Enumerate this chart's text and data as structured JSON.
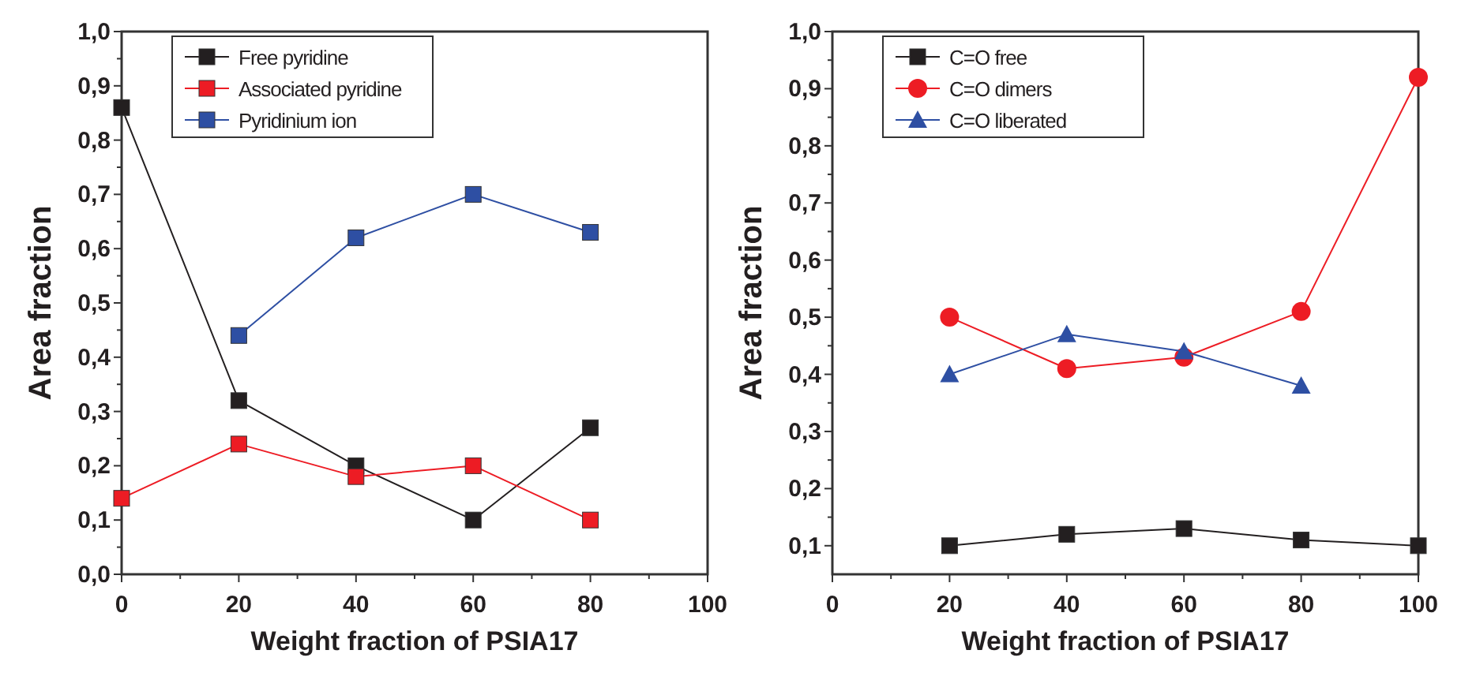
{
  "chart_data": [
    {
      "type": "line",
      "xlabel": "Weight fraction of  PSIA17",
      "ylabel": "Area fraction",
      "xlim": [
        0,
        100
      ],
      "ylim": [
        0,
        1
      ],
      "xticks": [
        0,
        {
          "value": 10,
          "label": null
        },
        20,
        {
          "value": 30,
          "label": null
        },
        40,
        {
          "value": 50,
          "label": null
        },
        60,
        {
          "value": 70,
          "label": null
        },
        80,
        {
          "value": 90,
          "label": null
        },
        100
      ],
      "yticks": [
        {
          "value": 0,
          "label": "0,0"
        },
        {
          "value": 0.05,
          "label": null
        },
        {
          "value": 0.1,
          "label": "0,1"
        },
        {
          "value": 0.15,
          "label": null
        },
        {
          "value": 0.2,
          "label": "0,2"
        },
        {
          "value": 0.25,
          "label": null
        },
        {
          "value": 0.3,
          "label": "0,3"
        },
        {
          "value": 0.35,
          "label": null
        },
        {
          "value": 0.4,
          "label": "0,4"
        },
        {
          "value": 0.45,
          "label": null
        },
        {
          "value": 0.5,
          "label": "0,5"
        },
        {
          "value": 0.55,
          "label": null
        },
        {
          "value": 0.6,
          "label": "0,6"
        },
        {
          "value": 0.65,
          "label": null
        },
        {
          "value": 0.7,
          "label": "0,7"
        },
        {
          "value": 0.75,
          "label": null
        },
        {
          "value": 0.8,
          "label": "0,8"
        },
        {
          "value": 0.85,
          "label": null
        },
        {
          "value": 0.9,
          "label": "0,9"
        },
        {
          "value": 0.95,
          "label": null
        },
        {
          "value": 1,
          "label": "1,0"
        }
      ],
      "legend": "top left",
      "grid": false,
      "marker": "square",
      "line_style": "solid",
      "series": [
        {
          "name": "Free pyridine",
          "color": "#231f20",
          "x": [
            0,
            20,
            40,
            60,
            80
          ],
          "values": [
            0.86,
            0.32,
            0.2,
            0.1,
            0.27
          ]
        },
        {
          "name": "Associated pyridine",
          "color": "#ed1c24",
          "x": [
            0,
            20,
            40,
            60,
            80
          ],
          "values": [
            0.14,
            0.24,
            0.18,
            0.2,
            0.1
          ]
        },
        {
          "name": "Pyridinium ion",
          "color": "#2e4fa3",
          "x": [
            20,
            40,
            60,
            80
          ],
          "values": [
            0.44,
            0.62,
            0.7,
            0.63
          ]
        }
      ]
    },
    {
      "type": "line",
      "xlabel": "Weight fraction of PSIA17",
      "ylabel": "Area fraction",
      "xlim": [
        0,
        100
      ],
      "ylim": [
        0.05,
        1
      ],
      "xticks": [
        0,
        {
          "value": 10,
          "label": null
        },
        20,
        {
          "value": 30,
          "label": null
        },
        40,
        {
          "value": 50,
          "label": null
        },
        60,
        {
          "value": 70,
          "label": null
        },
        80,
        {
          "value": 90,
          "label": null
        },
        100
      ],
      "yticks": [
        {
          "value": 0.1,
          "label": "0,1"
        },
        {
          "value": 0.15,
          "label": null
        },
        {
          "value": 0.2,
          "label": "0,2"
        },
        {
          "value": 0.25,
          "label": null
        },
        {
          "value": 0.3,
          "label": "0,3"
        },
        {
          "value": 0.35,
          "label": null
        },
        {
          "value": 0.4,
          "label": "0,4"
        },
        {
          "value": 0.45,
          "label": null
        },
        {
          "value": 0.5,
          "label": "0,5"
        },
        {
          "value": 0.55,
          "label": null
        },
        {
          "value": 0.6,
          "label": "0,6"
        },
        {
          "value": 0.65,
          "label": null
        },
        {
          "value": 0.7,
          "label": "0,7"
        },
        {
          "value": 0.75,
          "label": null
        },
        {
          "value": 0.8,
          "label": "0,8"
        },
        {
          "value": 0.85,
          "label": null
        },
        {
          "value": 0.9,
          "label": "0,9"
        },
        {
          "value": 0.95,
          "label": null
        },
        {
          "value": 1,
          "label": "1,0"
        }
      ],
      "legend": "top left",
      "grid": false,
      "line_style": "solid",
      "series": [
        {
          "name": "C=O free",
          "color": "#231f20",
          "marker": "square",
          "x": [
            20,
            40,
            60,
            80,
            100
          ],
          "values": [
            0.1,
            0.12,
            0.13,
            0.11,
            0.1
          ]
        },
        {
          "name": "C=O dimers",
          "color": "#ed1c24",
          "marker": "circle",
          "x": [
            20,
            40,
            60,
            80,
            100
          ],
          "values": [
            0.5,
            0.41,
            0.43,
            0.51,
            0.92
          ]
        },
        {
          "name": "C=O liberated",
          "color": "#2e4fa3",
          "marker": "triangle",
          "x": [
            20,
            40,
            60,
            80
          ],
          "values": [
            0.4,
            0.47,
            0.44,
            0.38
          ]
        }
      ]
    }
  ]
}
